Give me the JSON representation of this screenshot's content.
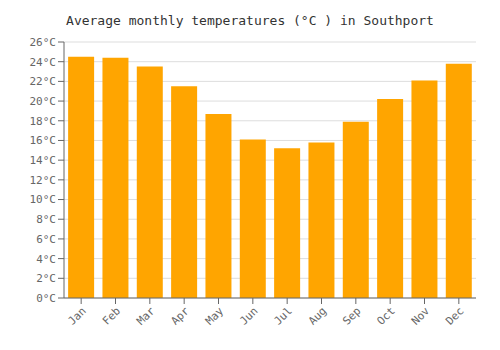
{
  "chart_data": {
    "type": "bar",
    "title": "Average monthly temperatures (°C ) in Southport",
    "categories": [
      "Jan",
      "Feb",
      "Mar",
      "Apr",
      "May",
      "Jun",
      "Jul",
      "Aug",
      "Sep",
      "Oct",
      "Nov",
      "Dec"
    ],
    "values": [
      24.5,
      24.4,
      23.5,
      21.5,
      18.7,
      16.1,
      15.2,
      15.8,
      17.9,
      20.2,
      22.1,
      23.8
    ],
    "color": "#FFA500",
    "ylim": [
      0,
      26
    ],
    "yticks": [
      {
        "value": 0,
        "label": "0°C"
      },
      {
        "value": 2,
        "label": "2°C"
      },
      {
        "value": 4,
        "label": "4°C"
      },
      {
        "value": 6,
        "label": "6°C"
      },
      {
        "value": 8,
        "label": "8°C"
      },
      {
        "value": 10,
        "label": "10°C"
      },
      {
        "value": 12,
        "label": "12°C"
      },
      {
        "value": 14,
        "label": "14°C"
      },
      {
        "value": 16,
        "label": "16°C"
      },
      {
        "value": 18,
        "label": "18°C"
      },
      {
        "value": 20,
        "label": "20°C"
      },
      {
        "value": 22,
        "label": "22°C"
      },
      {
        "value": 24,
        "label": "24°C"
      },
      {
        "value": 26,
        "label": "26°C"
      }
    ],
    "grid": true
  }
}
